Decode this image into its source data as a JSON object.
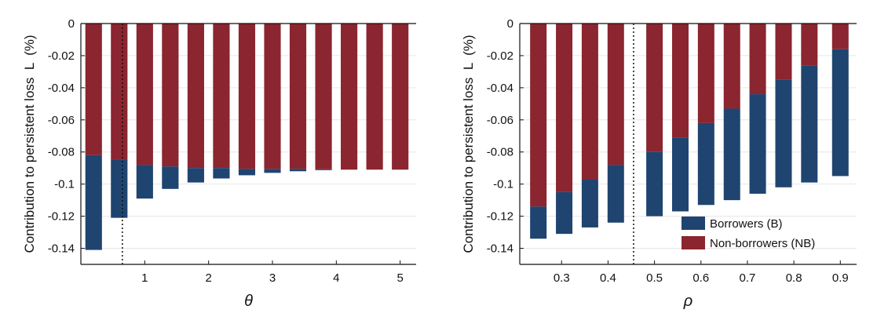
{
  "colors": {
    "borrowers": "#1f4470",
    "non_borrowers": "#8b2530",
    "grid": "#e6e6e6",
    "axis": "#111111"
  },
  "chart_data": [
    {
      "type": "bar",
      "stacked": true,
      "xlabel": "θ",
      "ylabel": "Contribution to persistent loss  L  (%)",
      "ylim": [
        -0.15,
        0.0
      ],
      "yticks": [
        "0",
        "-0.02",
        "-0.04",
        "-0.06",
        "-0.08",
        "-0.1",
        "-0.12",
        "-0.14"
      ],
      "ytick_values": [
        0,
        -0.02,
        -0.04,
        -0.06,
        -0.08,
        -0.1,
        -0.12,
        -0.14
      ],
      "xlim": [
        0.0,
        5.25
      ],
      "xticks": [
        "1",
        "2",
        "3",
        "4",
        "5"
      ],
      "xtick_values": [
        1,
        2,
        3,
        4,
        5
      ],
      "x": [
        0.2,
        0.6,
        1.0,
        1.4,
        1.8,
        2.2,
        2.6,
        3.0,
        3.4,
        3.8,
        4.2,
        4.6,
        5.0
      ],
      "series": [
        {
          "key": "non_borrowers",
          "values": [
            -0.082,
            -0.085,
            -0.088,
            -0.089,
            -0.09,
            -0.09,
            -0.0905,
            -0.0905,
            -0.0905,
            -0.0908,
            -0.091,
            -0.091,
            -0.091
          ]
        },
        {
          "key": "borrowers",
          "values": [
            -0.059,
            -0.036,
            -0.021,
            -0.014,
            -0.009,
            -0.0065,
            -0.004,
            -0.0025,
            -0.0015,
            -0.0005,
            0,
            0,
            0
          ]
        }
      ],
      "vline": 0.65,
      "grid": true
    },
    {
      "type": "bar",
      "stacked": true,
      "xlabel": "ρ",
      "ylabel": "Contribution to persistent loss  L  (%)",
      "ylim": [
        -0.15,
        0.0
      ],
      "yticks": [
        "0",
        "-0.02",
        "-0.04",
        "-0.06",
        "-0.08",
        "-0.1",
        "-0.12",
        "-0.14"
      ],
      "ytick_values": [
        0,
        -0.02,
        -0.04,
        -0.06,
        -0.08,
        -0.1,
        -0.12,
        -0.14
      ],
      "xlim": [
        0.21,
        0.935
      ],
      "xticks": [
        "0.3",
        "0.4",
        "0.5",
        "0.6",
        "0.7",
        "0.8",
        "0.9"
      ],
      "xtick_values": [
        0.3,
        0.4,
        0.5,
        0.6,
        0.7,
        0.8,
        0.9
      ],
      "x": [
        0.25,
        0.3056,
        0.3611,
        0.4167,
        0.5,
        0.5556,
        0.6111,
        0.6667,
        0.7222,
        0.7778,
        0.8333,
        0.9
      ],
      "series": [
        {
          "key": "non_borrowers",
          "values": [
            -0.114,
            -0.105,
            -0.097,
            -0.088,
            -0.08,
            -0.071,
            -0.062,
            -0.053,
            -0.044,
            -0.035,
            -0.026,
            -0.016
          ]
        },
        {
          "key": "borrowers",
          "values": [
            -0.02,
            -0.026,
            -0.03,
            -0.036,
            -0.04,
            -0.046,
            -0.051,
            -0.057,
            -0.062,
            -0.067,
            -0.073,
            -0.079
          ]
        }
      ],
      "vline": 0.455,
      "grid": true,
      "legend": {
        "placement": "bottom-right",
        "entries": [
          {
            "key": "borrowers",
            "label": "Borrowers (B)"
          },
          {
            "key": "non_borrowers",
            "label": "Non-borrowers (NB)"
          }
        ]
      }
    }
  ]
}
